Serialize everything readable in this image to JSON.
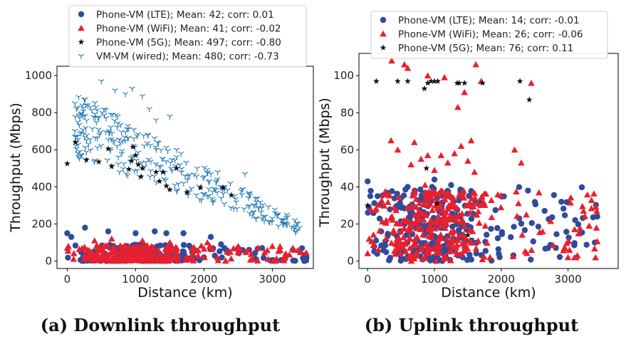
{
  "chart_data": [
    {
      "type": "scatter",
      "caption": "(a) Downlink throughput",
      "xlabel": "Distance (km)",
      "ylabel": "Throughput (Mbps)",
      "xlim": [
        -150,
        3600
      ],
      "ylim": [
        -40,
        1050
      ],
      "xticks": [
        0,
        1000,
        2000,
        3000
      ],
      "yticks": [
        0,
        200,
        400,
        600,
        800,
        1000
      ],
      "legend_position": "top (above plot)",
      "series": [
        {
          "name": "Phone-VM (LTE); Mean: 42; corr: 0.01",
          "marker": "circle",
          "color": "#2f4b9b",
          "gen": {
            "seed": 11,
            "n": 170,
            "xmin": 0,
            "xmax": 3500,
            "ymin": 0,
            "ymax": 90,
            "skew": 1.6,
            "xcenter": 1000
          },
          "points": [
            [
              0,
              150
            ],
            [
              60,
              130
            ],
            [
              260,
              180
            ],
            [
              600,
              160
            ],
            [
              1000,
              150
            ],
            [
              1280,
              160
            ],
            [
              1450,
              150
            ],
            [
              1700,
              150
            ],
            [
              2100,
              130
            ],
            [
              2250,
              90
            ],
            [
              2500,
              70
            ],
            [
              2850,
              70
            ],
            [
              3300,
              60
            ],
            [
              3500,
              20
            ]
          ]
        },
        {
          "name": "Phone-VM (WiFi); Mean: 41; corr: -0.02",
          "marker": "triangle",
          "color": "#e8202e",
          "gen": {
            "seed": 23,
            "n": 260,
            "xmin": 0,
            "xmax": 3500,
            "ymin": 0,
            "ymax": 85,
            "skew": 1.4,
            "xcenter": 950
          },
          "points": [
            [
              400,
              110
            ],
            [
              650,
              120
            ],
            [
              1100,
              110
            ],
            [
              1500,
              100
            ],
            [
              2050,
              100
            ],
            [
              2500,
              80
            ],
            [
              3000,
              80
            ],
            [
              3300,
              70
            ]
          ]
        },
        {
          "name": "Phone-VM (5G); Mean: 497; corr: -0.80",
          "marker": "star",
          "color": "#111111",
          "points": [
            [
              0,
              525
            ],
            [
              120,
              640
            ],
            [
              280,
              545
            ],
            [
              460,
              535
            ],
            [
              600,
              605
            ],
            [
              650,
              510
            ],
            [
              900,
              495
            ],
            [
              940,
              540
            ],
            [
              960,
              615
            ],
            [
              1000,
              570
            ],
            [
              1040,
              520
            ],
            [
              1080,
              455
            ],
            [
              1100,
              500
            ],
            [
              1300,
              480
            ],
            [
              1350,
              430
            ],
            [
              1400,
              480
            ],
            [
              1450,
              405
            ],
            [
              1500,
              385
            ],
            [
              1600,
              500
            ],
            [
              1750,
              370
            ],
            [
              1950,
              395
            ],
            [
              2280,
              395
            ],
            [
              2400,
              355
            ]
          ]
        },
        {
          "name": "VM-VM (wired); Mean: 480; corr: -0.73",
          "marker": "tri_down",
          "color": "#1f77b4",
          "gen": {
            "seed": 37,
            "n": 300,
            "xmin": 100,
            "xmax": 3450,
            "ymin": 150,
            "ymax": 920,
            "trend": true
          },
          "points": [
            [
              250,
              870
            ],
            [
              300,
              840
            ],
            [
              500,
              970
            ],
            [
              700,
              920
            ],
            [
              850,
              900
            ],
            [
              950,
              930
            ],
            [
              1100,
              890
            ],
            [
              1200,
              820
            ],
            [
              1300,
              760
            ],
            [
              1500,
              780
            ],
            [
              1600,
              600
            ],
            [
              1900,
              500
            ],
            [
              2200,
              480
            ],
            [
              2300,
              400
            ],
            [
              2600,
              470
            ],
            [
              2800,
              290
            ],
            [
              3000,
              230
            ],
            [
              3200,
              200
            ],
            [
              3400,
              180
            ]
          ]
        }
      ]
    },
    {
      "type": "scatter",
      "caption": "(b) Uplink throughput",
      "xlabel": "Distance (km)",
      "ylabel": "Throughput (Mbps)",
      "xlim": [
        -130,
        3750
      ],
      "ylim": [
        -4,
        112
      ],
      "xticks": [
        0,
        1000,
        2000,
        3000
      ],
      "yticks": [
        0,
        20,
        40,
        60,
        80,
        100
      ],
      "legend_position": "top (above plot)",
      "series": [
        {
          "name": "Phone-VM (LTE); Mean: 14; corr: -0.01",
          "marker": "circle",
          "color": "#2f4b9b",
          "gen": {
            "seed": 51,
            "n": 290,
            "xmin": 0,
            "xmax": 3450,
            "ymin": 0,
            "ymax": 40,
            "skew": 1.2,
            "xcenter": 900
          },
          "points": [
            [
              0,
              43
            ],
            [
              40,
              35
            ],
            [
              600,
              40
            ],
            [
              1000,
              44
            ],
            [
              1250,
              41
            ],
            [
              2400,
              38
            ],
            [
              2900,
              32
            ],
            [
              3400,
              10
            ]
          ]
        },
        {
          "name": "Phone-VM (WiFi); Mean: 26; corr: -0.06",
          "marker": "triangle",
          "color": "#e8202e",
          "gen": {
            "seed": 67,
            "n": 330,
            "xmin": 0,
            "xmax": 3450,
            "ymin": 0,
            "ymax": 38,
            "skew": 0.9,
            "xcenter": 1000
          },
          "points": [
            [
              360,
              108
            ],
            [
              550,
              106
            ],
            [
              600,
              104
            ],
            [
              900,
              100
            ],
            [
              1150,
              99
            ],
            [
              1350,
              83
            ],
            [
              1620,
              106
            ],
            [
              1700,
              97
            ],
            [
              1450,
              91
            ],
            [
              1550,
              65
            ],
            [
              700,
              64
            ],
            [
              350,
              65
            ],
            [
              450,
              60
            ],
            [
              650,
              52
            ],
            [
              800,
              55
            ],
            [
              900,
              57
            ],
            [
              1000,
              49
            ],
            [
              1100,
              57
            ],
            [
              1200,
              53
            ],
            [
              1300,
              58
            ],
            [
              1400,
              62
            ],
            [
              1500,
              54
            ],
            [
              1600,
              48
            ],
            [
              2200,
              60
            ],
            [
              2300,
              53
            ],
            [
              2450,
              96
            ],
            [
              860,
              41
            ],
            [
              1100,
              38
            ]
          ]
        },
        {
          "name": "Phone-VM (5G); Mean: 76; corr: 0.11",
          "marker": "star",
          "color": "#111111",
          "points": [
            [
              130,
              97
            ],
            [
              450,
              97
            ],
            [
              600,
              97
            ],
            [
              850,
              93
            ],
            [
              900,
              96
            ],
            [
              950,
              97
            ],
            [
              1000,
              97
            ],
            [
              1050,
              97
            ],
            [
              1340,
              96
            ],
            [
              1370,
              96
            ],
            [
              1450,
              96
            ],
            [
              1720,
              96
            ],
            [
              2280,
              97
            ],
            [
              2420,
              87
            ],
            [
              880,
              50
            ],
            [
              1040,
              31
            ],
            [
              0,
              30
            ],
            [
              1500,
              14
            ]
          ]
        }
      ]
    }
  ]
}
